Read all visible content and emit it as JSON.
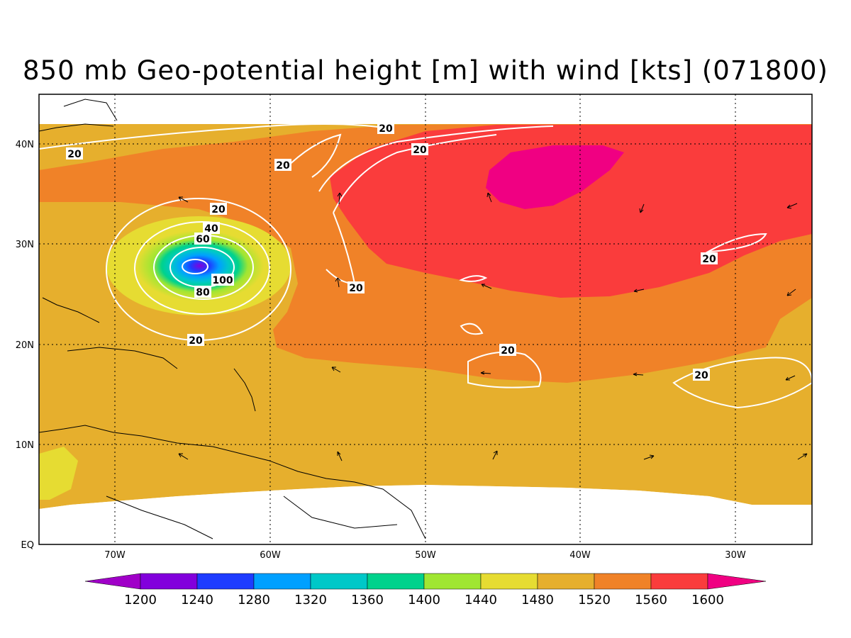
{
  "title": "850 mb Geo-potential height [m] with wind [kts] (071800)",
  "colors": {
    "h1200": "#a000c8",
    "h1240": "#8200dc",
    "h1280": "#1e3cff",
    "h1320": "#00a0ff",
    "h1360": "#00c8c8",
    "h1400": "#00d28c",
    "h1440": "#a0e632",
    "h1480": "#e6dc32",
    "h1520": "#e6af2d",
    "h1560": "#f08228",
    "h1600": "#fa3c3c",
    "h1640": "#f00082",
    "land": "#000000",
    "wind_contour": "#ffffff"
  },
  "lat_labels": [
    "40N",
    "30N",
    "20N",
    "10N",
    "EQ"
  ],
  "lon_labels": [
    "70W",
    "60W",
    "50W",
    "40W",
    "30W"
  ],
  "colorbar": {
    "labels": [
      "1200",
      "1240",
      "1280",
      "1320",
      "1360",
      "1400",
      "1440",
      "1480",
      "1520",
      "1560",
      "1600"
    ]
  },
  "wind_contour_labels": [
    "20",
    "20",
    "20",
    "20",
    "20",
    "20",
    "20",
    "20",
    "20",
    "20",
    "40",
    "60",
    "80",
    "100"
  ]
}
